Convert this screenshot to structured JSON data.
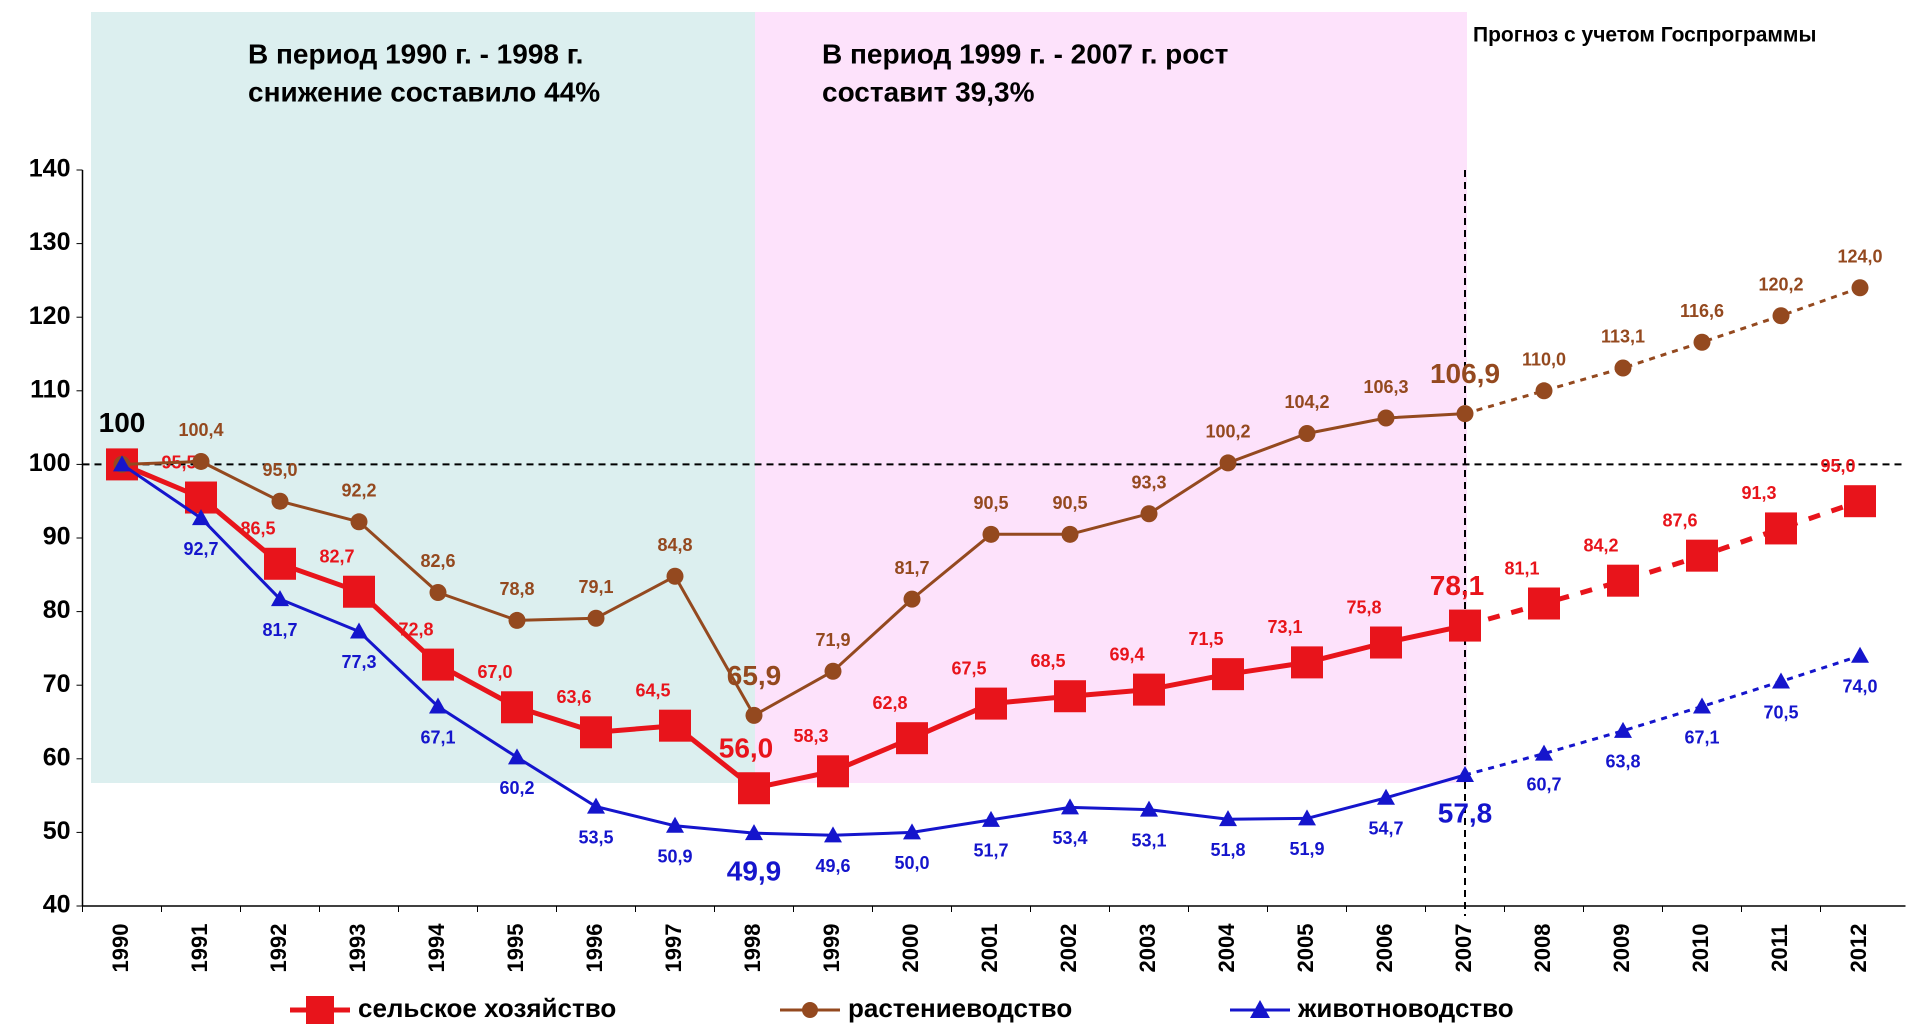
{
  "chart_data": {
    "type": "line",
    "annotations": [
      "В период 1990 г. - 1998 г.",
      "снижение составило 44%",
      "В период 1999 г. - 2007 г. рост",
      "составит 39,3%",
      "Прогноз с учетом Госпрограммы"
    ],
    "categories": [
      "1990",
      "1991",
      "1992",
      "1993",
      "1994",
      "1995",
      "1996",
      "1997",
      "1998",
      "1999",
      "2000",
      "2001",
      "2002",
      "2003",
      "2004",
      "2005",
      "2006",
      "2007",
      "2008",
      "2009",
      "2010",
      "2011",
      "2012"
    ],
    "series": [
      {
        "name": "сельское хозяйство",
        "color": "#e8141b",
        "values": [
          100,
          95.5,
          86.5,
          82.7,
          72.8,
          67.0,
          63.6,
          64.5,
          56.0,
          58.3,
          62.8,
          67.5,
          68.5,
          69.4,
          71.5,
          73.1,
          75.8,
          78.1,
          81.1,
          84.2,
          87.6,
          91.3,
          95.0
        ],
        "value_labels": [
          "100",
          "95,5",
          "86,5",
          "82,7",
          "72,8",
          "67,0",
          "63,6",
          "64,5",
          "56,0",
          "58,3",
          "62,8",
          "67,5",
          "68,5",
          "69,4",
          "71,5",
          "73,1",
          "75,8",
          "78,1",
          "81,1",
          "84,2",
          "87,6",
          "91,3",
          "95,0"
        ]
      },
      {
        "name": "растениеводство",
        "color": "#94491f",
        "values": [
          100,
          100.4,
          95.0,
          92.2,
          82.6,
          78.8,
          79.1,
          84.8,
          65.9,
          71.9,
          81.7,
          90.5,
          90.5,
          93.3,
          100.2,
          104.2,
          106.3,
          106.9,
          110.0,
          113.1,
          116.6,
          120.2,
          124.0
        ],
        "value_labels": [
          null,
          "100,4",
          "95,0",
          "92,2",
          "82,6",
          "78,8",
          "79,1",
          "84,8",
          "65,9",
          "71,9",
          "81,7",
          "90,5",
          "90,5",
          "93,3",
          "100,2",
          "104,2",
          "106,3",
          "106,9",
          "110,0",
          "113,1",
          "116,6",
          "120,2",
          "124,0"
        ]
      },
      {
        "name": "животноводство",
        "color": "#1515cc",
        "values": [
          100,
          92.7,
          81.7,
          77.3,
          67.1,
          60.2,
          53.5,
          50.9,
          49.9,
          49.6,
          50.0,
          51.7,
          53.4,
          53.1,
          51.8,
          51.9,
          54.7,
          57.8,
          60.7,
          63.8,
          67.1,
          70.5,
          74.0
        ],
        "value_labels": [
          null,
          "92,7",
          "81,7",
          "77,3",
          "67,1",
          "60,2",
          "53,5",
          "50,9",
          "49,9",
          "49,6",
          "50,0",
          "51,7",
          "53,4",
          "53,1",
          "51,8",
          "51,9",
          "54,7",
          "57,8",
          "60,7",
          "63,8",
          "67,1",
          "70,5",
          "74,0"
        ]
      }
    ],
    "ylim": [
      40,
      140
    ],
    "yticks": [
      40,
      50,
      60,
      70,
      80,
      90,
      100,
      110,
      120,
      130,
      140
    ]
  }
}
